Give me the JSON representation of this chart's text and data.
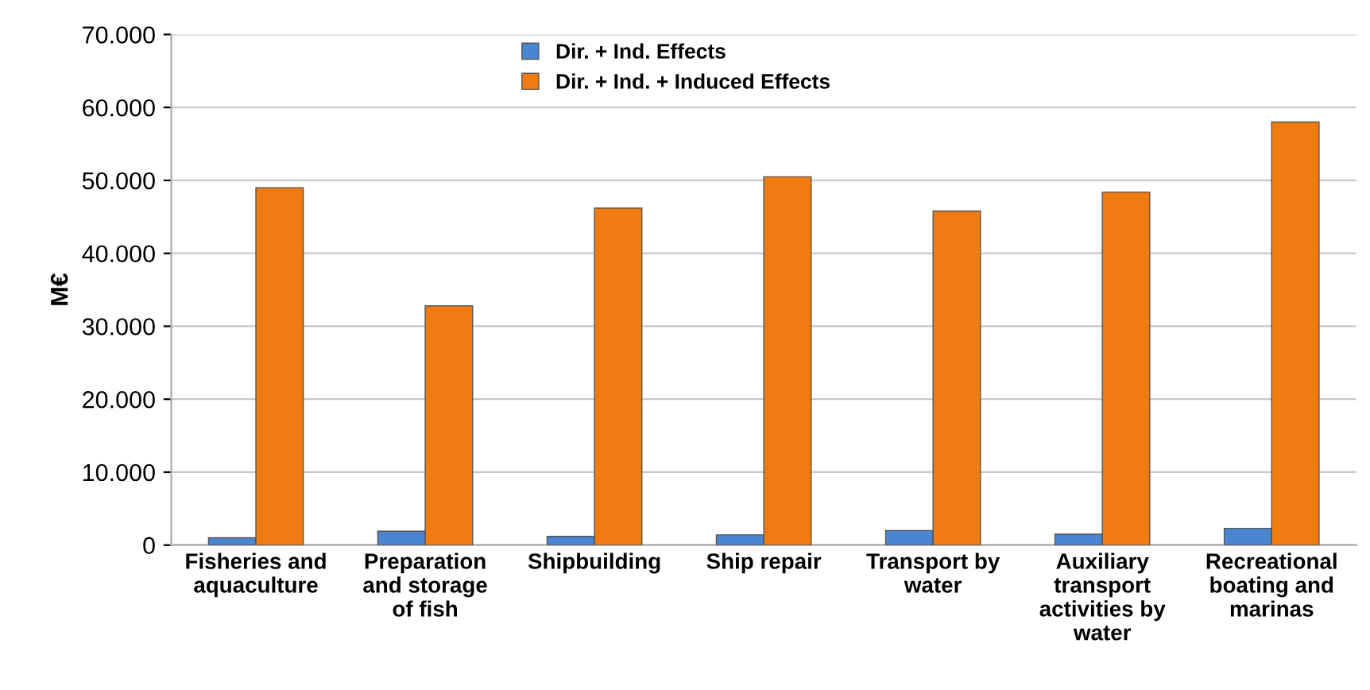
{
  "chart_data": {
    "type": "bar",
    "ylabel": "M€",
    "categories": [
      "Fisheries and\naquaculture",
      "Preparation\nand storage\nof fish",
      "Shipbuilding",
      "Ship repair",
      "Transport by\nwater",
      "Auxiliary\ntransport\nactivities by\nwater",
      "Recreational\nboating and\nmarinas"
    ],
    "series": [
      {
        "name": "Dir. + Ind. Effects",
        "color": "#4a86d0",
        "values": [
          1000,
          1900,
          1200,
          1400,
          2000,
          1500,
          2300
        ]
      },
      {
        "name": "Dir. + Ind. + Induced Effects",
        "color": "#f07b10",
        "values": [
          49000,
          32800,
          46200,
          50500,
          45800,
          48400,
          58000
        ]
      }
    ],
    "ylim": [
      0,
      70000
    ],
    "yticks": [
      {
        "value": 0,
        "label": "0"
      },
      {
        "value": 10000,
        "label": "10.000"
      },
      {
        "value": 20000,
        "label": "20.000"
      },
      {
        "value": 30000,
        "label": "30.000"
      },
      {
        "value": 40000,
        "label": "40.000"
      },
      {
        "value": 50000,
        "label": "50.000"
      },
      {
        "value": 60000,
        "label": "60.000"
      },
      {
        "value": 70000,
        "label": "70.000"
      }
    ],
    "grid": "y",
    "legend": "top left"
  }
}
